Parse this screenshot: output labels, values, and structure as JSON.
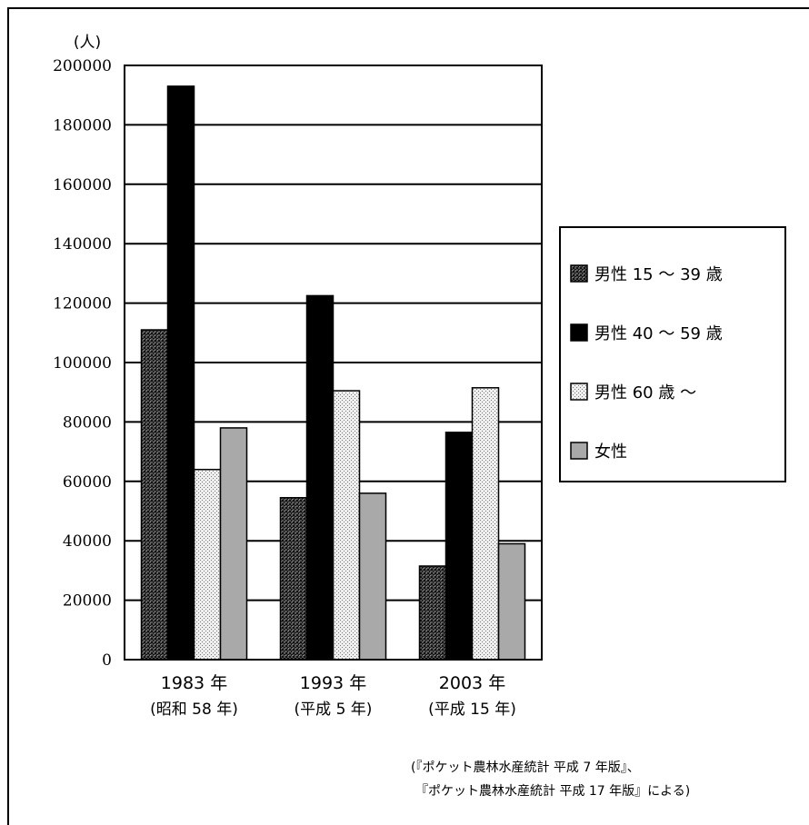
{
  "chart_data": {
    "type": "bar",
    "unit_label": "(人)",
    "categories": [
      {
        "year": "1983 年",
        "era": "(昭和 58 年)"
      },
      {
        "year": "1993 年",
        "era": "(平成 5 年)"
      },
      {
        "year": "2003 年",
        "era": "(平成 15 年)"
      }
    ],
    "y_ticks": [
      "0",
      "20000",
      "40000",
      "60000",
      "80000",
      "100000",
      "120000",
      "140000",
      "160000",
      "180000",
      "200000"
    ],
    "ylim": [
      0,
      200000
    ],
    "grid": true,
    "legend_position": "right",
    "series": [
      {
        "name": "男性 15 ～ 39 歳",
        "values": [
          111000,
          54500,
          31500
        ],
        "pattern": "dense-dots",
        "color": "#2b2b2b"
      },
      {
        "name": "男性 40 ～ 59 歳",
        "values": [
          193000,
          122500,
          76500
        ],
        "pattern": "solid",
        "color": "#000000"
      },
      {
        "name": "男性 60 歳 ～",
        "values": [
          64000,
          90500,
          91500
        ],
        "pattern": "light-dots",
        "color": "#d8d8d8"
      },
      {
        "name": "女性",
        "values": [
          78000,
          56000,
          39000
        ],
        "pattern": "solid",
        "color": "#a9a9a9"
      }
    ]
  },
  "source_lines": [
    "(『ポケット農林水産統計 平成 7 年版』、",
    "『ポケット農林水産統計 平成 17 年版』による)"
  ]
}
